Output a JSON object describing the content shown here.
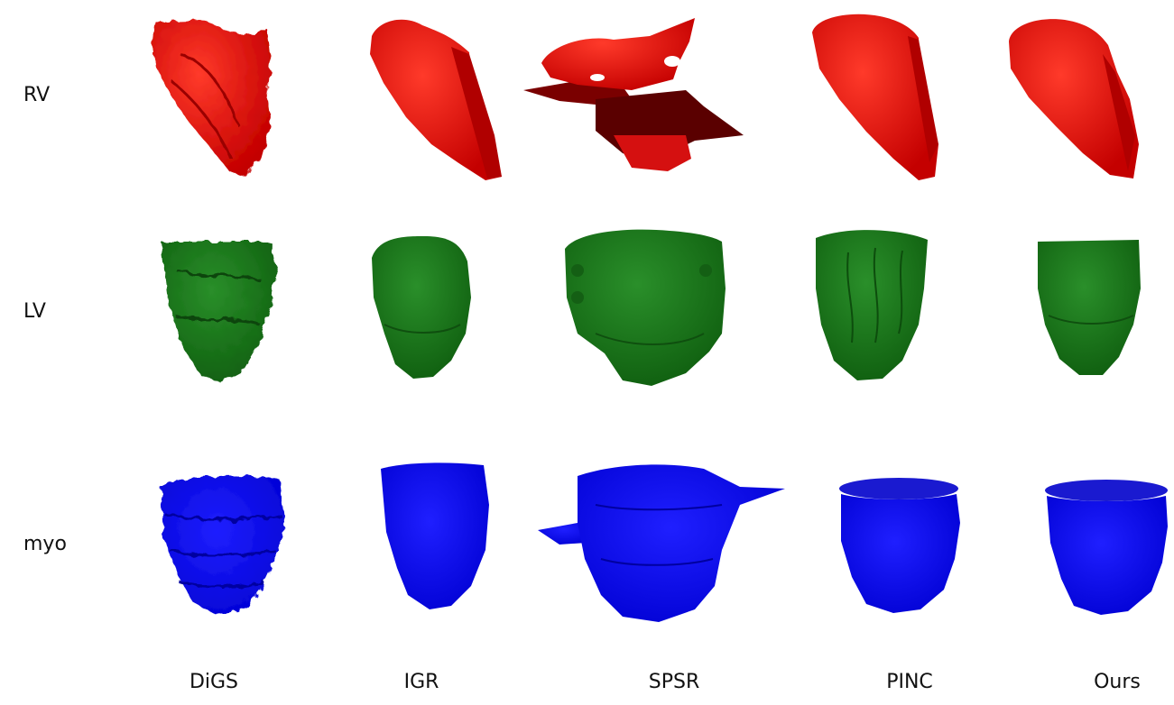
{
  "figure": {
    "rows": [
      {
        "key": "rv",
        "label": "RV",
        "color": "#e01010",
        "dark": "#8a0000"
      },
      {
        "key": "lv",
        "label": "LV",
        "color": "#177a17",
        "dark": "#0d4d0d"
      },
      {
        "key": "myo",
        "label": "myo",
        "color": "#0a0af0",
        "dark": "#00008c"
      }
    ],
    "columns": [
      {
        "key": "digs",
        "label": "DiGS"
      },
      {
        "key": "igr",
        "label": "IGR"
      },
      {
        "key": "spsr",
        "label": "SPSR"
      },
      {
        "key": "pinc",
        "label": "PINC"
      },
      {
        "key": "ours",
        "label": "Ours"
      }
    ]
  }
}
